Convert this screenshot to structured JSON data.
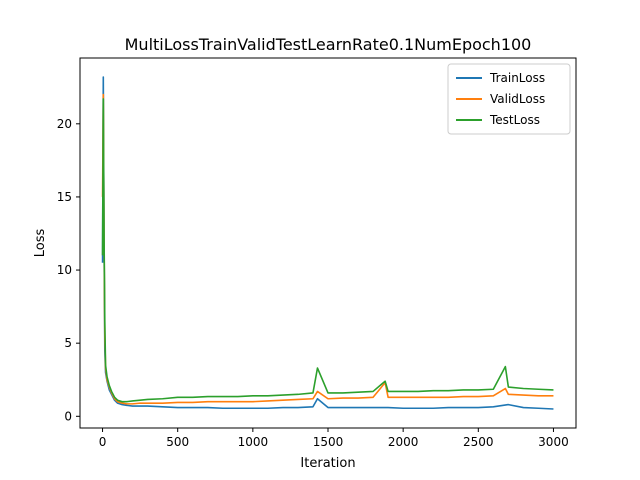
{
  "chart_data": {
    "type": "line",
    "title": "MultiLossTrainValidTestLearnRate0.1NumEpoch100",
    "xlabel": "Iteration",
    "ylabel": "Loss",
    "xlim": [
      -150,
      3150
    ],
    "ylim": [
      -0.8,
      24.5
    ],
    "xticks": [
      0,
      500,
      1000,
      1500,
      2000,
      2500,
      3000
    ],
    "yticks": [
      0,
      5,
      10,
      15,
      20
    ],
    "grid": false,
    "legend_position": "top-right",
    "series": [
      {
        "name": "TrainLoss",
        "color": "#1f77b4",
        "x": [
          0,
          5,
          10,
          15,
          20,
          30,
          45,
          60,
          80,
          100,
          130,
          160,
          200,
          250,
          300,
          400,
          500,
          600,
          700,
          800,
          900,
          1000,
          1100,
          1200,
          1300,
          1400,
          1430,
          1500,
          1600,
          1700,
          1800,
          1900,
          2000,
          2100,
          2200,
          2300,
          2400,
          2500,
          2600,
          2700,
          2800,
          2900,
          3000
        ],
        "y": [
          10.5,
          23.2,
          12.0,
          4.5,
          3.0,
          2.4,
          1.8,
          1.5,
          1.1,
          0.9,
          0.8,
          0.75,
          0.7,
          0.7,
          0.7,
          0.65,
          0.6,
          0.6,
          0.6,
          0.55,
          0.55,
          0.55,
          0.55,
          0.6,
          0.6,
          0.65,
          1.2,
          0.6,
          0.6,
          0.6,
          0.6,
          0.6,
          0.55,
          0.55,
          0.55,
          0.6,
          0.6,
          0.6,
          0.65,
          0.8,
          0.6,
          0.55,
          0.5
        ]
      },
      {
        "name": "ValidLoss",
        "color": "#ff7f0e",
        "x": [
          0,
          5,
          10,
          15,
          20,
          30,
          45,
          60,
          80,
          100,
          130,
          160,
          200,
          250,
          300,
          400,
          500,
          600,
          700,
          800,
          900,
          1000,
          1100,
          1200,
          1300,
          1400,
          1430,
          1500,
          1600,
          1700,
          1800,
          1880,
          1900,
          2000,
          2100,
          2200,
          2300,
          2400,
          2500,
          2600,
          2680,
          2700,
          2800,
          2900,
          3000
        ],
        "y": [
          15.0,
          22.0,
          12.0,
          5.5,
          3.3,
          2.5,
          2.0,
          1.6,
          1.2,
          1.0,
          0.9,
          0.85,
          0.85,
          0.9,
          0.9,
          0.9,
          0.95,
          0.95,
          1.0,
          1.0,
          1.0,
          1.0,
          1.05,
          1.1,
          1.15,
          1.2,
          1.7,
          1.2,
          1.25,
          1.25,
          1.3,
          2.3,
          1.3,
          1.3,
          1.3,
          1.3,
          1.3,
          1.35,
          1.35,
          1.4,
          1.9,
          1.5,
          1.45,
          1.4,
          1.4
        ]
      },
      {
        "name": "TestLoss",
        "color": "#2ca02c",
        "x": [
          0,
          5,
          10,
          15,
          20,
          30,
          45,
          60,
          80,
          100,
          130,
          160,
          200,
          250,
          300,
          400,
          500,
          600,
          700,
          800,
          900,
          1000,
          1100,
          1200,
          1300,
          1400,
          1430,
          1500,
          1600,
          1700,
          1800,
          1880,
          1900,
          2000,
          2100,
          2200,
          2300,
          2400,
          2500,
          2600,
          2680,
          2700,
          2800,
          2900,
          3000
        ],
        "y": [
          11.0,
          21.7,
          12.5,
          6.5,
          3.5,
          2.7,
          2.1,
          1.7,
          1.3,
          1.1,
          1.0,
          1.0,
          1.05,
          1.1,
          1.15,
          1.2,
          1.3,
          1.3,
          1.35,
          1.35,
          1.35,
          1.4,
          1.4,
          1.45,
          1.5,
          1.6,
          3.3,
          1.6,
          1.6,
          1.65,
          1.7,
          2.4,
          1.7,
          1.7,
          1.7,
          1.75,
          1.75,
          1.8,
          1.8,
          1.85,
          3.4,
          2.0,
          1.9,
          1.85,
          1.8
        ]
      }
    ]
  }
}
